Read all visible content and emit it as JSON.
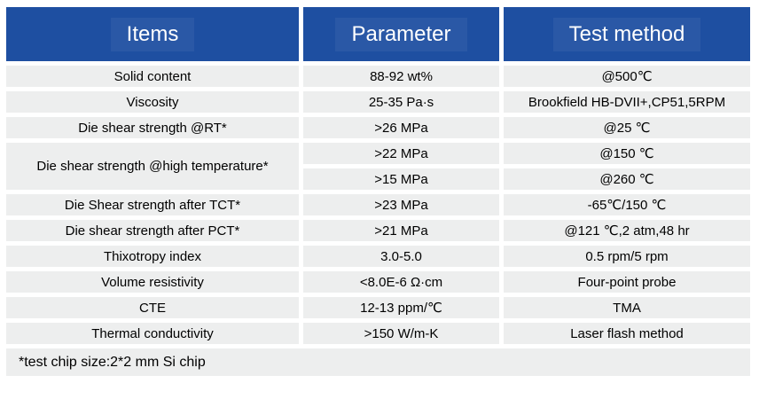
{
  "colors": {
    "header_bg": "#1E4FA1",
    "header_text": "#FFFFFF",
    "row_bg": "#EDEEEE",
    "body_text": "#000000",
    "page_bg": "#FFFFFF"
  },
  "table": {
    "columns": [
      "Items",
      "Parameter",
      "Test method"
    ],
    "rows": [
      {
        "item": "Solid content",
        "parameter": "88-92 wt%",
        "method": "@500℃"
      },
      {
        "item": "Viscosity",
        "parameter": "25-35 Pa·s",
        "method": "Brookfield HB-DVII+,CP51,5RPM"
      },
      {
        "item": "Die shear strength @RT*",
        "parameter": ">26 MPa",
        "method": "@25 ℃"
      },
      {
        "item": "Die shear strength @high temperature*",
        "parameter": ">22 MPa",
        "method": "@150 ℃"
      },
      {
        "parameter": ">15 MPa",
        "method": "@260 ℃"
      },
      {
        "item": "Die Shear strength after TCT*",
        "parameter": ">23 MPa",
        "method": "-65℃/150 ℃"
      },
      {
        "item": "Die shear strength after PCT*",
        "parameter": ">21 MPa",
        "method": "@121 ℃,2 atm,48 hr"
      },
      {
        "item": "Thixotropy index",
        "parameter": "3.0-5.0",
        "method": "0.5 rpm/5 rpm"
      },
      {
        "item": "Volume resistivity",
        "parameter": "<8.0E-6 Ω·cm",
        "method": "Four-point probe"
      },
      {
        "item": "CTE",
        "parameter": "12-13 ppm/℃",
        "method": "TMA"
      },
      {
        "item": "Thermal conductivity",
        "parameter": ">150 W/m-K",
        "method": "Laser flash method"
      }
    ],
    "footnote": "*test chip size:2*2 mm Si chip"
  }
}
